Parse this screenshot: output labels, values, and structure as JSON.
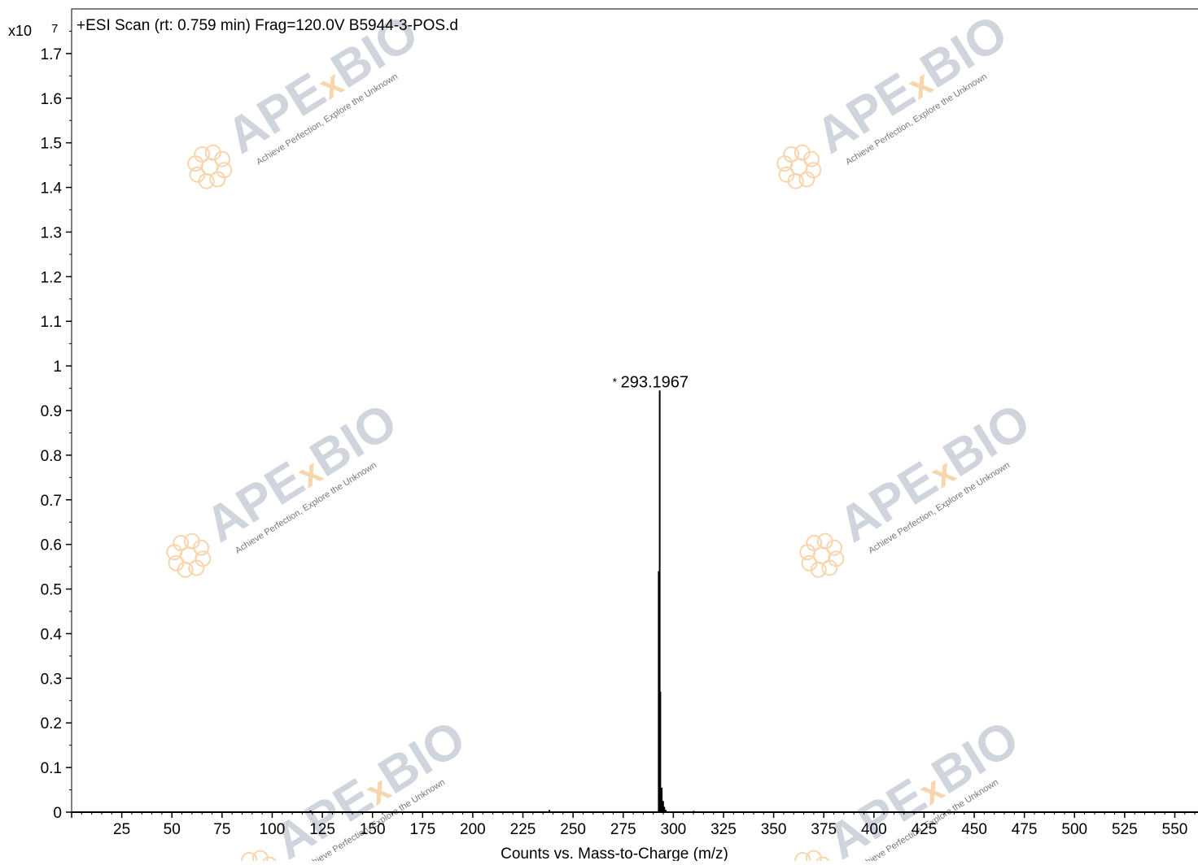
{
  "chart_data": {
    "type": "bar",
    "title": "+ESI Scan (rt: 0.759 min) Frag=120.0V B5944-3-POS.d",
    "xlabel": "Counts vs. Mass-to-Charge (m/z)",
    "ylabel": "",
    "y_multiplier_label": "x10",
    "y_multiplier_exponent": "7",
    "xlim": [
      0,
      564
    ],
    "ylim": [
      0,
      1.8
    ],
    "x_ticks": [
      "25",
      "50",
      "75",
      "100",
      "125",
      "150",
      "175",
      "200",
      "225",
      "250",
      "275",
      "300",
      "325",
      "350",
      "375",
      "400",
      "425",
      "450",
      "475",
      "500",
      "525",
      "550"
    ],
    "y_ticks": [
      "0",
      "0.1",
      "0.2",
      "0.3",
      "0.4",
      "0.5",
      "0.6",
      "0.7",
      "0.8",
      "0.9",
      "1",
      "1.1",
      "1.2",
      "1.3",
      "1.4",
      "1.5",
      "1.6",
      "1.7"
    ],
    "series": [
      {
        "x": [
          119.1,
          238.2,
          292.7,
          293.197,
          293.5,
          294.2,
          294.9,
          295.5,
          296.2,
          310.2,
          563.0
        ],
        "y": [
          0.004,
          0.005,
          0.54,
          0.945,
          0.27,
          0.055,
          0.025,
          0.012,
          0.005,
          0.003,
          0.004
        ]
      }
    ],
    "annotations": [
      {
        "x": 293.197,
        "y": 0.945,
        "text": "293.1967"
      }
    ],
    "grid": false,
    "legend": "none"
  },
  "watermark": {
    "brand_left": "APE",
    "brand_x": "x",
    "brand_right": "BIO",
    "tagline": "Achieve Perfection, Explore the Unknown",
    "brand_color": "#a9b2c2",
    "accent_color": "#f2b36b"
  },
  "colors": {
    "axis": "#000000",
    "peak": "#000000"
  }
}
